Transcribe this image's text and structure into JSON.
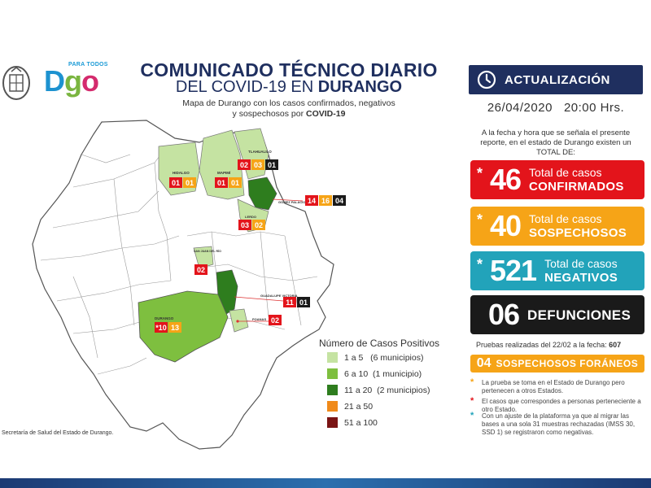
{
  "header": {
    "logo_tag": "PARA TODOS",
    "logo_d": "D",
    "logo_g": "g",
    "logo_o": "o",
    "title_line1": "COMUNICADO TÉCNICO DIARIO",
    "title_line2_prefix": "DEL COVID-19 EN ",
    "title_line2_bold": "DURANGO",
    "subtitle_line1": "Mapa de Durango con los casos confirmados, negativos",
    "subtitle_line2_prefix": "y sospechosos por ",
    "subtitle_line2_bold": "COVID-19"
  },
  "update": {
    "label": "ACTUALIZACIÓN",
    "date": "26/04/2020",
    "time": "20:00 Hrs.",
    "intro": "A la fecha y hora que se señala el presente reporte, en el estado de Durango existen un TOTAL DE:"
  },
  "stats": {
    "confirmed": {
      "star": "*",
      "value": "46",
      "line1": "Total de casos",
      "line2": "CONFIRMADOS"
    },
    "suspected": {
      "star": "*",
      "value": "40",
      "line1": "Total de casos",
      "line2": "SOSPECHOSOS"
    },
    "negative": {
      "star": "*",
      "value": "521",
      "line1": "Total de casos",
      "line2": "NEGATIVOS"
    },
    "deaths": {
      "value": "06",
      "line2": "DEFUNCIONES"
    }
  },
  "tests": {
    "prefix": "Pruebas realizadas del 22/02 a la fecha: ",
    "value": "607"
  },
  "foraneos": {
    "value": "04",
    "label": "SOSPECHOSOS FORÁNEOS"
  },
  "notes": [
    {
      "star": "*",
      "text": "La prueba se toma en el Estado de Durango pero pertenecen a otros Estados."
    },
    {
      "star": "*",
      "text": "El casos que correspondes a personas perteneciente a otro Estado."
    },
    {
      "star": "*",
      "text": "Con un ajuste de la plataforma ya que al migrar las bases a una sola 31 muestras rechazadas (IMSS 30, SSD 1) se registraron como negativas."
    }
  ],
  "legend": {
    "title": "Número de Casos Positivos",
    "items": [
      {
        "range": "1 a 5",
        "detail": "(6 municipios)",
        "color": "#c5e3a2"
      },
      {
        "range": "6 a 10",
        "detail": "(1 municipio)",
        "color": "#7ebf3f"
      },
      {
        "range": "11 a 20",
        "detail": "(2 municipios)",
        "color": "#2e7d1e"
      },
      {
        "range": "21 a 50",
        "detail": "",
        "color": "#f08a1a"
      },
      {
        "range": "51 a 100",
        "detail": "",
        "color": "#7a1414"
      }
    ]
  },
  "map": {
    "municipalities": [
      {
        "name": "HIDALGO",
        "confirmed": "01",
        "suspected": "01",
        "deaths": ""
      },
      {
        "name": "MAPIMÍ",
        "confirmed": "01",
        "suspected": "01",
        "deaths": ""
      },
      {
        "name": "TLAHUALILO",
        "confirmed": "02",
        "suspected": "03",
        "deaths": "01"
      },
      {
        "name": "GÓMEZ PALACIO",
        "confirmed": "14",
        "suspected": "16",
        "deaths": "04"
      },
      {
        "name": "LERDO",
        "confirmed": "03",
        "suspected": "02",
        "deaths": ""
      },
      {
        "name": "SAN JUAN DEL RÍO",
        "confirmed": "02",
        "suspected": "",
        "deaths": ""
      },
      {
        "name": "GUADALUPE VICTORIA",
        "confirmed": "11",
        "suspected": "",
        "deaths": "01"
      },
      {
        "name": "POANAS",
        "confirmed": "02",
        "suspected": "",
        "deaths": ""
      },
      {
        "name": "DURANGO",
        "confirmed": "10",
        "suspected": "13",
        "deaths": "",
        "confirmed_star": "*"
      }
    ],
    "badge_colors": {
      "confirmed": "#e3141b",
      "suspected": "#f6a417",
      "deaths": "#1a1a1a"
    }
  },
  "footer": {
    "source": "Secretaría de Salud del Estado de Durango."
  },
  "colors": {
    "navy": "#1f2f5f",
    "red": "#e3141b",
    "orange": "#f6a417",
    "teal": "#22a3ba",
    "black": "#1a1a1a"
  }
}
